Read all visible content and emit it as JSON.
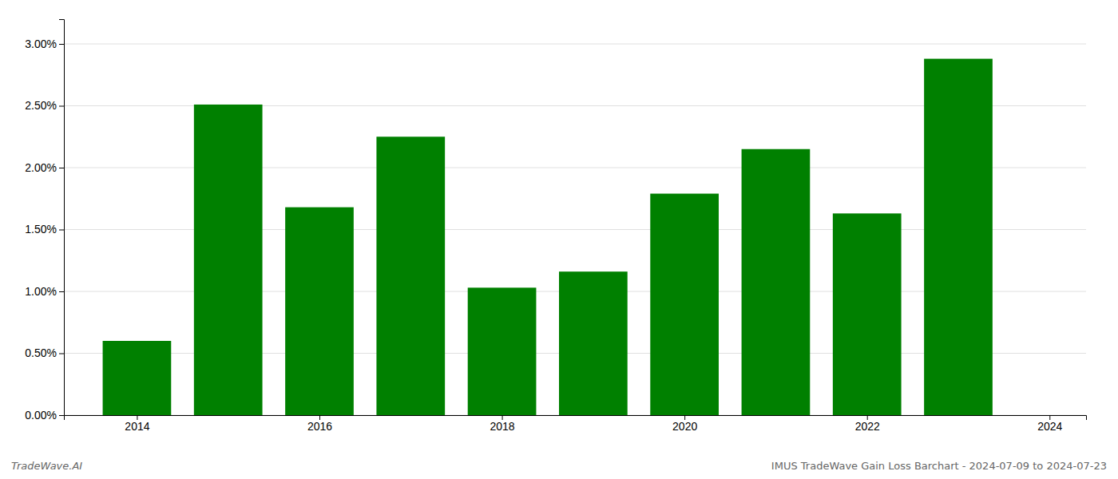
{
  "chart_data": {
    "type": "bar",
    "x": [
      2014,
      2015,
      2016,
      2017,
      2018,
      2019,
      2020,
      2021,
      2022,
      2023
    ],
    "values": [
      0.006,
      0.0251,
      0.0168,
      0.0225,
      0.0103,
      0.0116,
      0.0179,
      0.0215,
      0.0163,
      0.0288
    ],
    "color": "#008000",
    "xlim": [
      2013.2,
      2024.4
    ],
    "xticks": [
      2014,
      2016,
      2018,
      2020,
      2022,
      2024
    ],
    "ylim": [
      0,
      0.032
    ],
    "yticks": [
      {
        "value": 0.0,
        "label": "0.00%"
      },
      {
        "value": 0.005,
        "label": "0.50%"
      },
      {
        "value": 0.01,
        "label": "1.00%"
      },
      {
        "value": 0.015,
        "label": "1.50%"
      },
      {
        "value": 0.02,
        "label": "2.00%"
      },
      {
        "value": 0.025,
        "label": "2.50%"
      },
      {
        "value": 0.03,
        "label": "3.00%"
      }
    ],
    "grid": true,
    "annotations": [
      "TradeWave.AI",
      "IMUS TradeWave Gain Loss Barchart - 2024-07-09 to 2024-07-23"
    ]
  }
}
